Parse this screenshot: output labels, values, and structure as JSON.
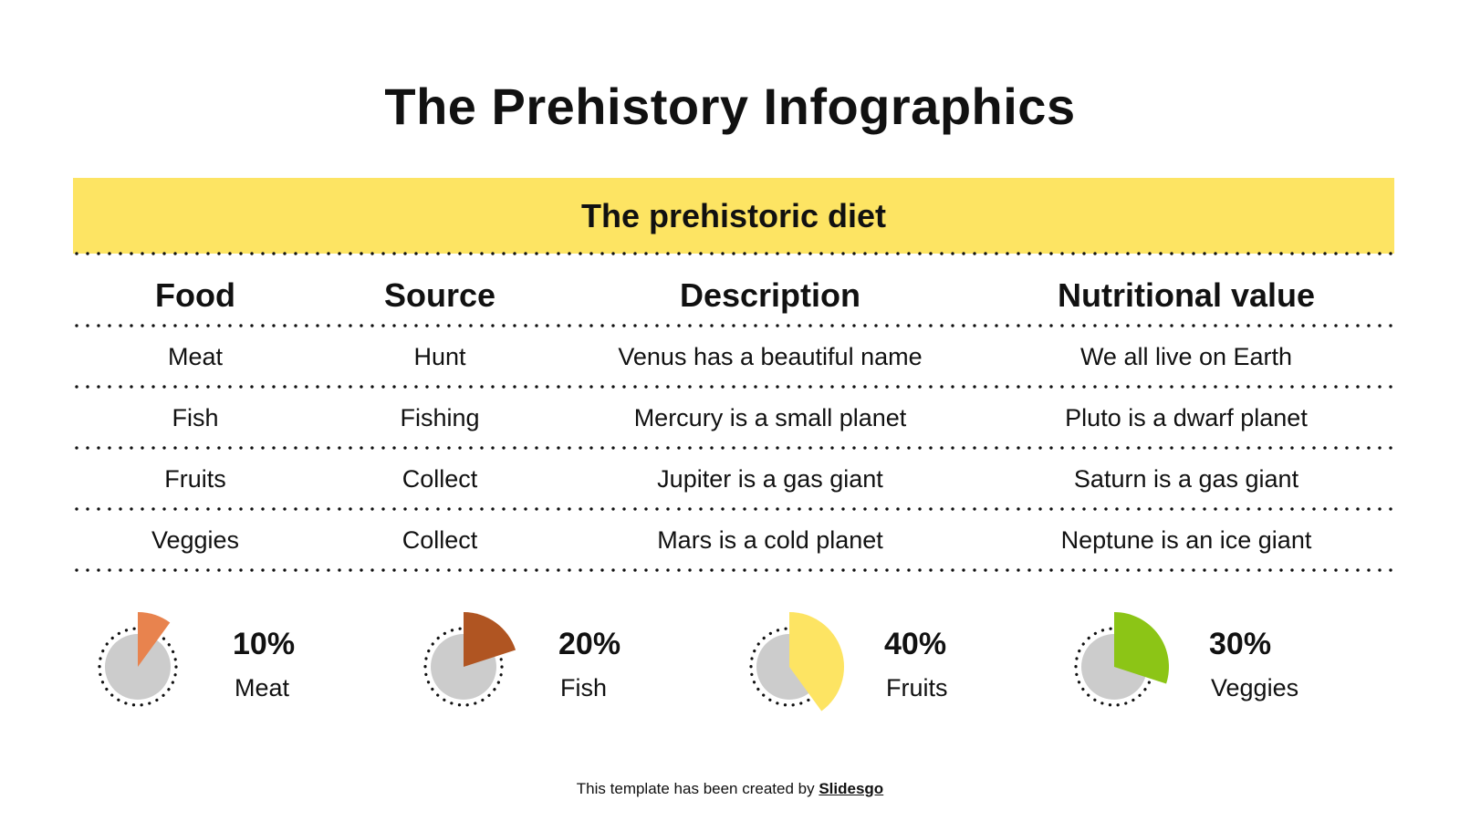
{
  "title": "The Prehistory Infographics",
  "banner": {
    "text": "The prehistoric diet",
    "color": "#FDE463"
  },
  "table": {
    "headers": [
      "Food",
      "Source",
      "Description",
      "Nutritional value"
    ],
    "rows": [
      [
        "Meat",
        "Hunt",
        "Venus has a beautiful name",
        "We all live on Earth"
      ],
      [
        "Fish",
        "Fishing",
        "Mercury is a small planet",
        "Pluto is a dwarf planet"
      ],
      [
        "Fruits",
        "Collect",
        "Jupiter is a gas giant",
        "Saturn is a gas giant"
      ],
      [
        "Veggies",
        "Collect",
        "Mars is a cold planet",
        "Neptune is an ice giant"
      ]
    ]
  },
  "stats": [
    {
      "percent": "10%",
      "label": "Meat",
      "value": 10,
      "color": "#E8834E"
    },
    {
      "percent": "20%",
      "label": "Fish",
      "value": 20,
      "color": "#B05522"
    },
    {
      "percent": "40%",
      "label": "Fruits",
      "value": 40,
      "color": "#FDE463"
    },
    {
      "percent": "30%",
      "label": "Veggies",
      "value": 30,
      "color": "#8CC516"
    }
  ],
  "footer": {
    "prefix": "This template has been created by ",
    "link": "Slidesgo"
  }
}
